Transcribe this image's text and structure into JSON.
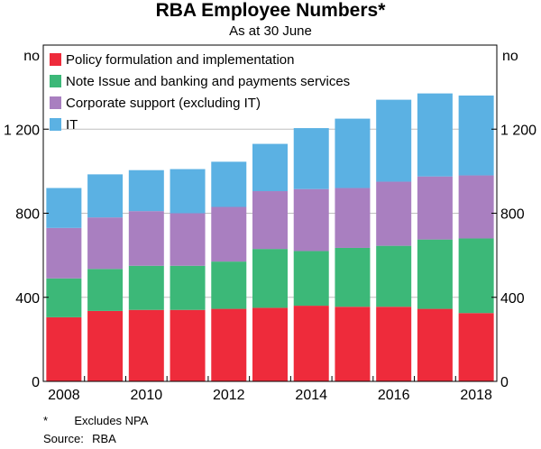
{
  "title": "RBA Employee Numbers*",
  "subtitle": "As at 30 June",
  "footnotes": {
    "note_symbol": "*",
    "note_text": "Excludes NPA",
    "source_label": "Source:",
    "source_text": "RBA"
  },
  "chart_data": {
    "type": "bar",
    "stacked": true,
    "categories": [
      "2008",
      "2009",
      "2010",
      "2011",
      "2012",
      "2013",
      "2014",
      "2015",
      "2016",
      "2017",
      "2018"
    ],
    "x_tick_labels": [
      "2008",
      "2010",
      "2012",
      "2014",
      "2016",
      "2018"
    ],
    "ylabel_left": "no",
    "ylabel_right": "no",
    "ylim": [
      0,
      1600
    ],
    "y_ticks": [
      0,
      400,
      800,
      1200
    ],
    "y_tick_labels": [
      "0",
      "400",
      "800",
      "1 200"
    ],
    "grid": true,
    "legend_position": "top-left",
    "series": [
      {
        "name": "Policy formulation and implementation",
        "color": "#ee2b3b",
        "values": [
          305,
          335,
          340,
          340,
          345,
          350,
          360,
          355,
          355,
          345,
          325
        ]
      },
      {
        "name": "Note Issue and banking and payments services",
        "color": "#3cb878",
        "values": [
          185,
          200,
          210,
          210,
          225,
          280,
          260,
          280,
          290,
          330,
          355
        ]
      },
      {
        "name": "Corporate support (excluding IT)",
        "color": "#a97fc0",
        "values": [
          240,
          245,
          260,
          250,
          260,
          275,
          295,
          285,
          305,
          300,
          300
        ]
      },
      {
        "name": "IT",
        "color": "#5bb1e3",
        "values": [
          190,
          205,
          195,
          210,
          215,
          225,
          290,
          330,
          390,
          395,
          380
        ]
      }
    ]
  }
}
